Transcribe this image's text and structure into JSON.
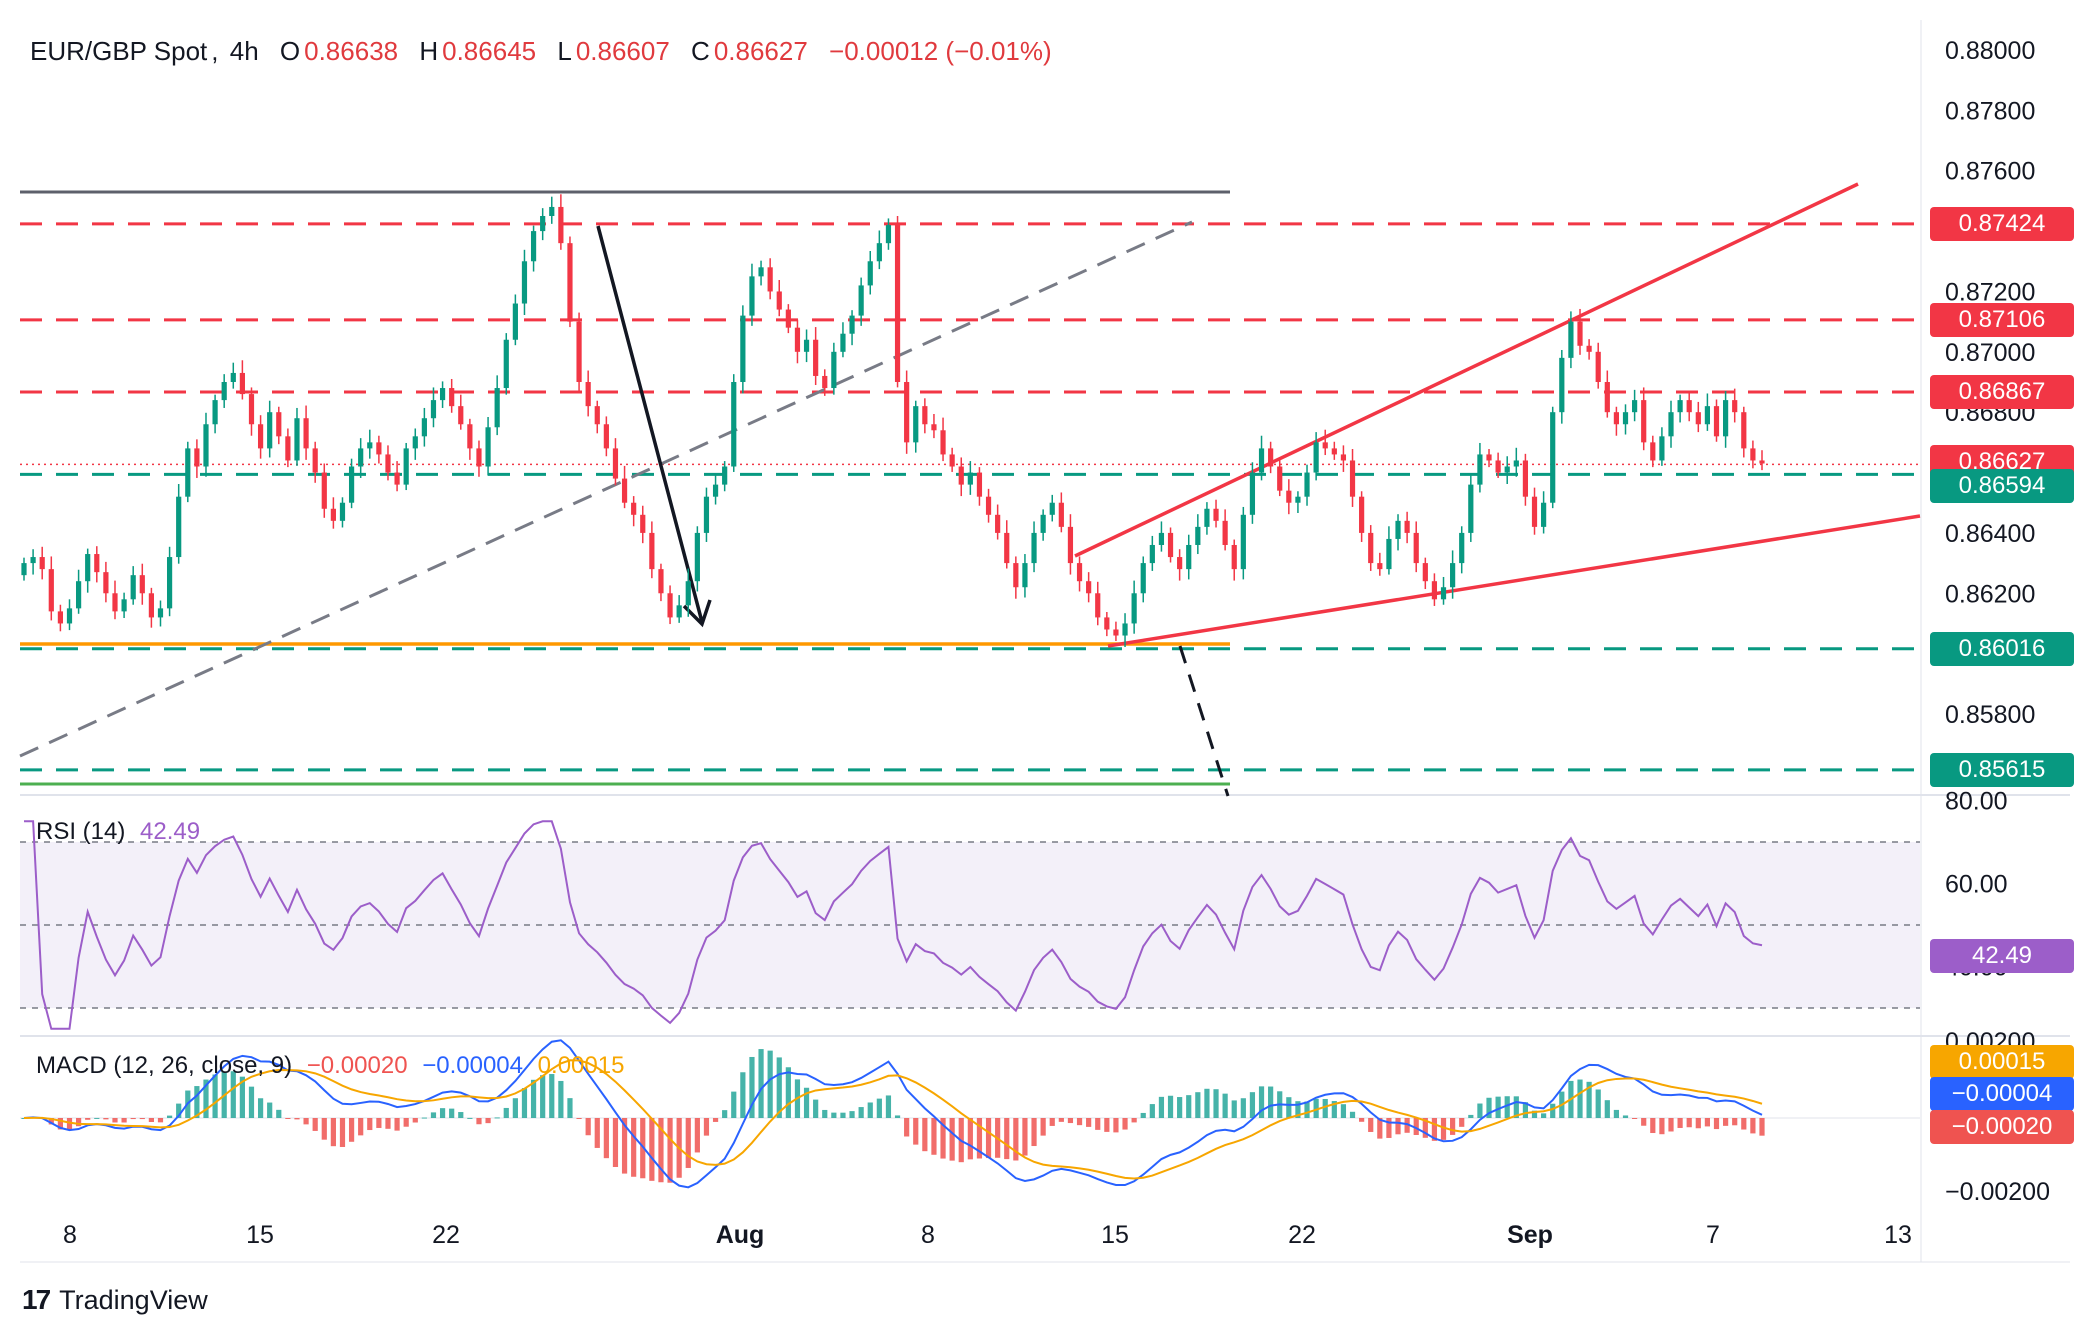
{
  "header": {
    "symbol": "EUR/GBP Spot",
    "timeframe": "4h",
    "open_label": "O",
    "open": "0.86638",
    "high_label": "H",
    "high": "0.86645",
    "low_label": "L",
    "low": "0.86607",
    "close_label": "C",
    "close": "0.86627",
    "change": "−0.00012 (−0.01%)"
  },
  "rsi": {
    "name": "RSI (14)",
    "value": "42.49",
    "color": "#9c5ec9",
    "axis_ticks": [
      "80.00",
      "60.00",
      "40.00"
    ]
  },
  "macd": {
    "name": "MACD (12, 26, close, 9)",
    "histogram": "−0.00020",
    "macd": "−0.00004",
    "signal": "0.00015",
    "axis_ticks": [
      "0.00200",
      "−0.00200"
    ],
    "colors": {
      "macd": "#2962ff",
      "signal": "#f7a600",
      "hist_pos": "#26a69a",
      "hist_neg": "#ef5350"
    }
  },
  "footer": {
    "brand": "TradingView"
  },
  "chart_data": {
    "type": "candlestick",
    "symbol": "EUR/GBP",
    "interval": "4h",
    "x_ticks": [
      "8",
      "15",
      "22",
      "Aug",
      "8",
      "15",
      "22",
      "Sep",
      "7",
      "13"
    ],
    "y_ticks": [
      "0.88000",
      "0.87800",
      "0.87600",
      "0.87200",
      "0.87000",
      "0.86800",
      "0.86400",
      "0.86200",
      "0.85800"
    ],
    "y_range": [
      0.855,
      0.8805
    ],
    "last_price": {
      "value": "0.86627",
      "color": "#f23645"
    },
    "resistance_levels": [
      {
        "value": "0.87424",
        "color": "#f23645"
      },
      {
        "value": "0.87106",
        "color": "#f23645"
      },
      {
        "value": "0.86867",
        "color": "#f23645"
      }
    ],
    "support_levels": [
      {
        "value": "0.86594",
        "color": "#089981"
      },
      {
        "value": "0.86016",
        "color": "#089981"
      },
      {
        "value": "0.85615",
        "color": "#089981"
      }
    ],
    "colors": {
      "up": "#089981",
      "down": "#f23645",
      "trendline": "#f23645",
      "range_line": "#787b86",
      "orange_support": "#ff9800",
      "green_support": "#4caf50"
    },
    "candles_close_path": [
      0.863,
      0.8632,
      0.8628,
      0.8614,
      0.861,
      0.8615,
      0.8624,
      0.8633,
      0.8627,
      0.862,
      0.8614,
      0.8618,
      0.8626,
      0.862,
      0.8612,
      0.8615,
      0.8632,
      0.8652,
      0.8668,
      0.8662,
      0.8676,
      0.8684,
      0.869,
      0.8693,
      0.8686,
      0.8676,
      0.8668,
      0.868,
      0.8672,
      0.8664,
      0.8678,
      0.8668,
      0.866,
      0.8648,
      0.8644,
      0.865,
      0.8662,
      0.8668,
      0.867,
      0.8666,
      0.866,
      0.8656,
      0.8668,
      0.8672,
      0.8678,
      0.8684,
      0.8688,
      0.8682,
      0.8676,
      0.8668,
      0.8662,
      0.8675,
      0.8688,
      0.8704,
      0.8716,
      0.873,
      0.874,
      0.8745,
      0.8748,
      0.8736,
      0.871,
      0.869,
      0.8682,
      0.8676,
      0.8668,
      0.8658,
      0.865,
      0.8646,
      0.864,
      0.8628,
      0.862,
      0.8612,
      0.8616,
      0.8624,
      0.864,
      0.8652,
      0.8656,
      0.8662,
      0.869,
      0.8712,
      0.8725,
      0.8728,
      0.872,
      0.8714,
      0.8708,
      0.87,
      0.8704,
      0.8692,
      0.8688,
      0.87,
      0.8706,
      0.8712,
      0.8722,
      0.873,
      0.8736,
      0.8742,
      0.869,
      0.867,
      0.8682,
      0.8676,
      0.8674,
      0.8666,
      0.8662,
      0.8656,
      0.866,
      0.8652,
      0.8646,
      0.864,
      0.863,
      0.8622,
      0.863,
      0.864,
      0.8646,
      0.865,
      0.8642,
      0.863,
      0.8624,
      0.862,
      0.8612,
      0.8608,
      0.8606,
      0.861,
      0.862,
      0.863,
      0.8636,
      0.864,
      0.8632,
      0.8628,
      0.8636,
      0.8642,
      0.8648,
      0.8644,
      0.8636,
      0.8628,
      0.8646,
      0.866,
      0.8668,
      0.8662,
      0.8654,
      0.865,
      0.8652,
      0.866,
      0.867,
      0.8668,
      0.8666,
      0.8664,
      0.8652,
      0.864,
      0.863,
      0.8628,
      0.8638,
      0.8644,
      0.864,
      0.863,
      0.8624,
      0.8618,
      0.8622,
      0.863,
      0.864,
      0.8656,
      0.8666,
      0.8664,
      0.866,
      0.8662,
      0.8664,
      0.8652,
      0.8642,
      0.865,
      0.868,
      0.8698,
      0.871,
      0.8702,
      0.87,
      0.869,
      0.868,
      0.8676,
      0.868,
      0.8684,
      0.867,
      0.8664,
      0.8672,
      0.868,
      0.8684,
      0.868,
      0.8676,
      0.8682,
      0.8672,
      0.8684,
      0.868,
      0.8668,
      0.8664,
      0.8663
    ]
  }
}
